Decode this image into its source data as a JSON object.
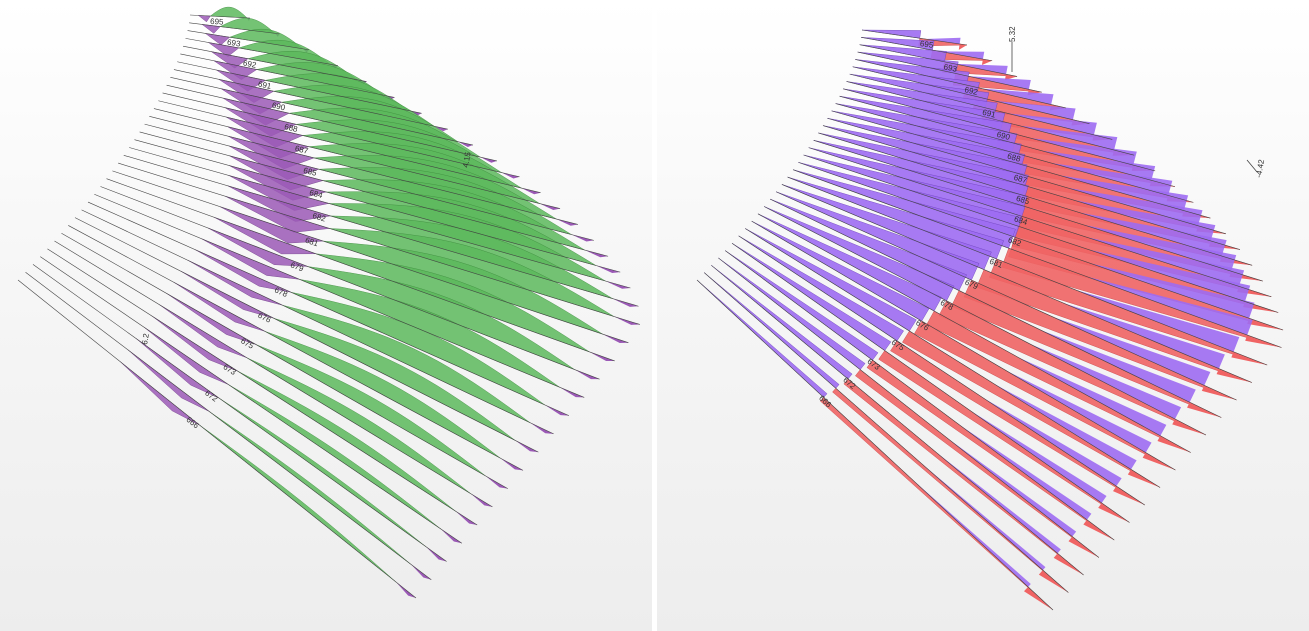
{
  "colors": {
    "moment_pos": "#5cb85c",
    "moment_neg": "#9b59b6",
    "shear_pos": "#f06464",
    "shear_neg": "#9d6cf2",
    "beam_line": "#444444"
  },
  "member_labels": [
    "695",
    "694",
    "693",
    "692",
    "51",
    "691",
    "690",
    "689",
    "688",
    "687",
    "686",
    "685",
    "684",
    "683",
    "682",
    "681",
    "680",
    "679",
    "678",
    "677",
    "676",
    "675",
    "674",
    "673",
    "672",
    "671",
    "666"
  ],
  "left_panel": {
    "extra_labels": {
      "peak_a": "4.15",
      "peak_b": "6.2"
    }
  },
  "right_panel": {
    "extra_labels": {
      "peak_a": "5.32",
      "peak_b": "-4.42"
    }
  }
}
